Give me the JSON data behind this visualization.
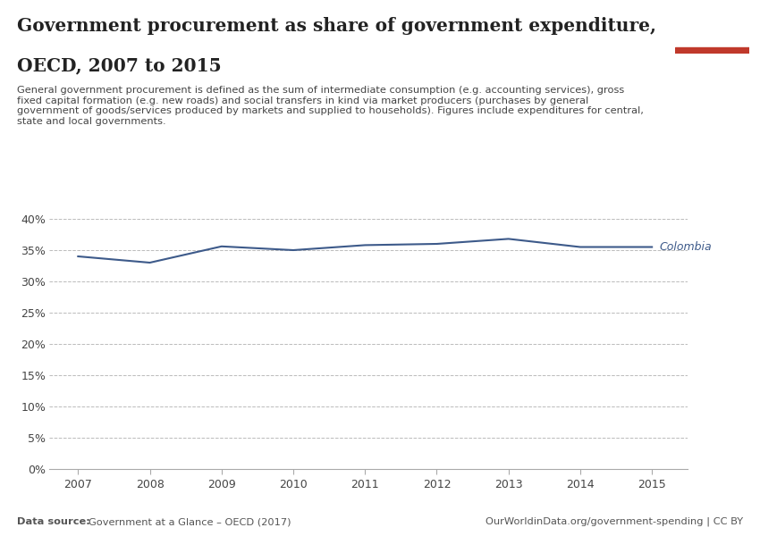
{
  "title_line1": "Government procurement as share of government expenditure,",
  "title_line2": "OECD, 2007 to 2015",
  "subtitle": "General government procurement is defined as the sum of intermediate consumption (e.g. accounting services), gross\nfixed capital formation (e.g. new roads) and social transfers in kind via market producers (purchases by general\ngovernment of goods/services produced by markets and supplied to households). Figures include expenditures for central,\nstate and local governments.",
  "datasource": "Data source: Government at a Glance – OECD (2017)",
  "url": "OurWorldinData.org/government-spending | CC BY",
  "years": [
    2007,
    2008,
    2009,
    2010,
    2011,
    2012,
    2013,
    2014,
    2015
  ],
  "colombia_values": [
    0.34,
    0.33,
    0.356,
    0.35,
    0.358,
    0.36,
    0.368,
    0.355,
    0.355
  ],
  "line_color": "#3d5a8a",
  "label": "Colombia",
  "ylim": [
    0.0,
    0.42
  ],
  "yticks": [
    0.0,
    0.05,
    0.1,
    0.15,
    0.2,
    0.25,
    0.3,
    0.35,
    0.4
  ],
  "bg_color": "#ffffff",
  "grid_color": "#bbbbbb",
  "title_color": "#222222",
  "subtitle_color": "#444444",
  "footer_color": "#555555",
  "owid_box_color": "#1a2e4a",
  "owid_red": "#c0392b"
}
